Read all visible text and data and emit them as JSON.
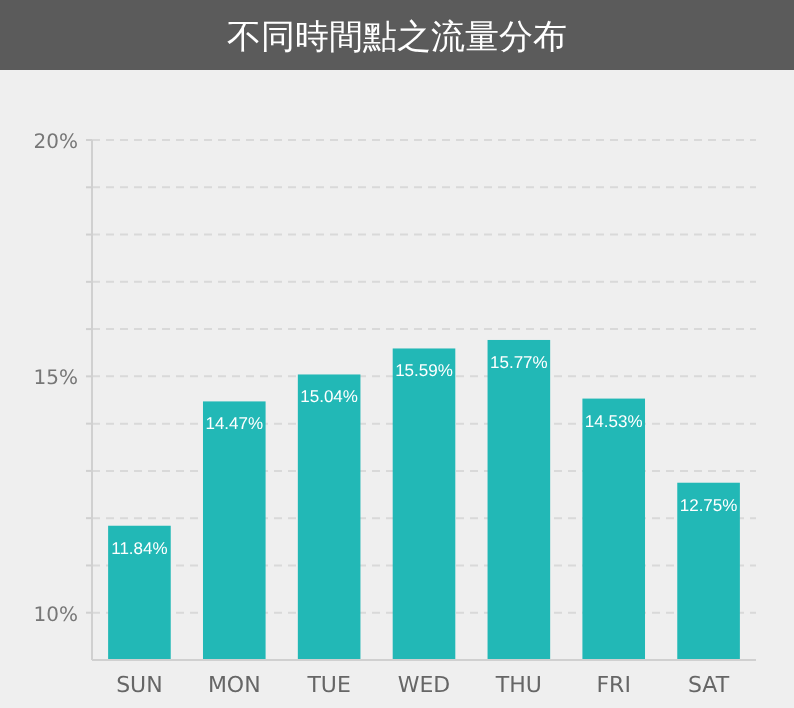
{
  "chart_data": {
    "type": "bar",
    "title": "不同時間點之流量分布",
    "categories": [
      "SUN",
      "MON",
      "TUE",
      "WED",
      "THU",
      "FRI",
      "SAT"
    ],
    "values": [
      11.84,
      14.47,
      15.04,
      15.59,
      15.77,
      14.53,
      12.75
    ],
    "value_labels": [
      "11.84%",
      "14.47%",
      "15.04%",
      "15.59%",
      "15.77%",
      "14.53%",
      "12.75%"
    ],
    "color": "#22b8b6",
    "ylim": [
      9,
      20
    ],
    "yticks": [
      {
        "value": 10,
        "label": "10%"
      },
      {
        "value": 11,
        "label": null
      },
      {
        "value": 12,
        "label": null
      },
      {
        "value": 13,
        "label": null
      },
      {
        "value": 14,
        "label": null
      },
      {
        "value": 15,
        "label": "15%"
      },
      {
        "value": 16,
        "label": null
      },
      {
        "value": 17,
        "label": null
      },
      {
        "value": 18,
        "label": null
      },
      {
        "value": 19,
        "label": null
      },
      {
        "value": 20,
        "label": "20%"
      }
    ],
    "grid": "y"
  }
}
